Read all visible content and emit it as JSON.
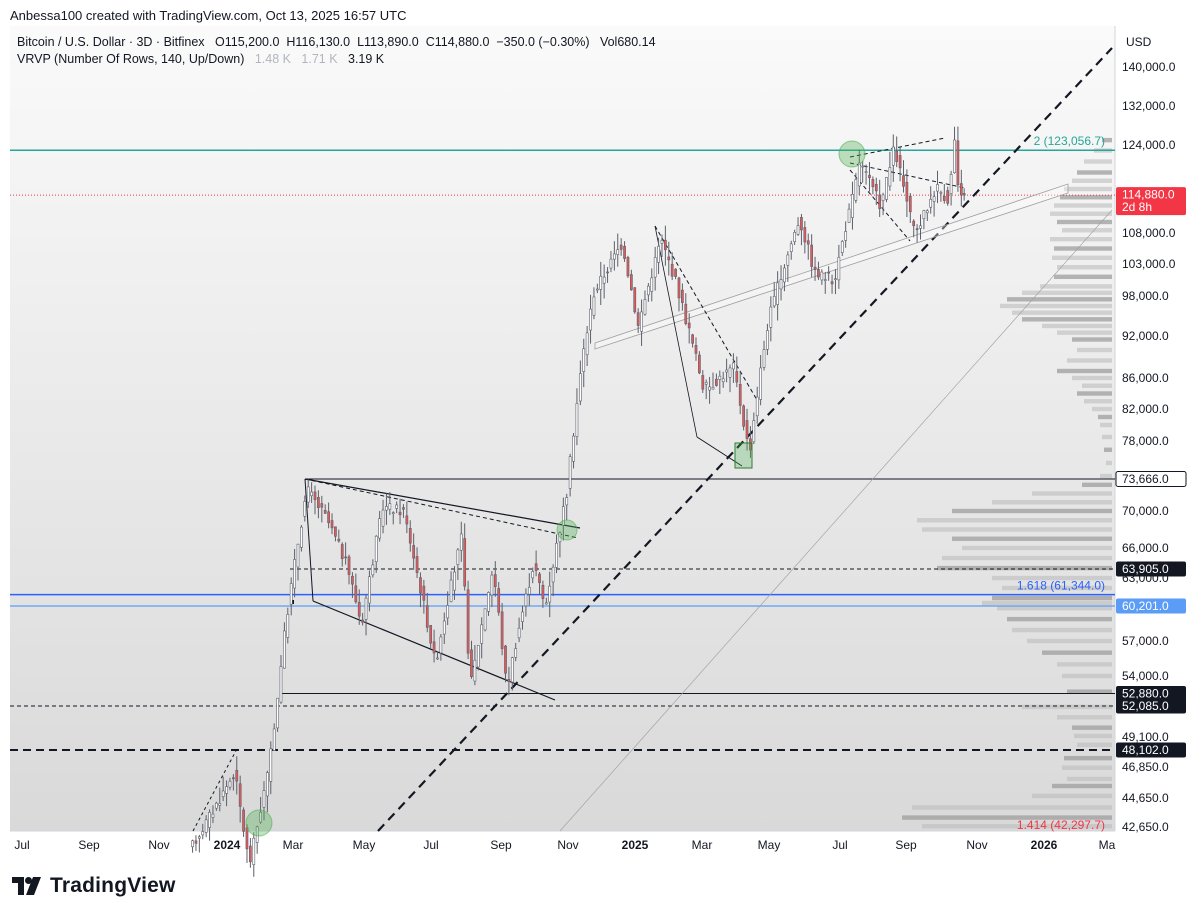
{
  "header": {
    "credit": "Anbessa100 created with TradingView.com, Oct 13, 2025 16:57 UTC"
  },
  "legend": {
    "symbol": "Bitcoin / U.S. Dollar · 3D · Bitfinex",
    "open_label": "O",
    "open": "115,200.0",
    "high_label": "H",
    "high": "116,130.0",
    "low_label": "L",
    "low": "113,890.0",
    "close_label": "C",
    "close": "114,880.0",
    "change": "−350.0 (−0.30%)",
    "vol_label": "Vol",
    "vol": "680.14",
    "indicator": "VRVP (Number Of Rows, 140, Up/Down)",
    "ind_v1": "1.48 K",
    "ind_v2": "1.71 K",
    "ind_v3": "3.19 K"
  },
  "footer": {
    "brand": "TradingView"
  },
  "colors": {
    "up": "#ffffff",
    "down": "#e05a5a",
    "green_line": "#26a69a",
    "blue_line": "#2962ff",
    "light_blue_line": "#5b9cf6",
    "price_red": "#f23645",
    "dark_label": "#131722",
    "green_marker": "#4caf50"
  },
  "chart_data": {
    "type": "candlestick",
    "currency": "USD",
    "x_ticks": [
      "Jul",
      "Sep",
      "Nov",
      "2024",
      "Mar",
      "May",
      "Jul",
      "Sep",
      "Nov",
      "2025",
      "Mar",
      "May",
      "Jul",
      "Sep",
      "Nov",
      "2026",
      "Ma"
    ],
    "y_ticks": [
      "140,000.0",
      "132,000.0",
      "124,000.0",
      "108,000.0",
      "103,000.0",
      "98,000.0",
      "92,000.0",
      "86,000.0",
      "82,000.0",
      "78,000.0",
      "70,000.0",
      "66,000.0",
      "63,000.0",
      "57,000.0",
      "54,000.0",
      "49,100.0",
      "46,850.0",
      "44,650.0",
      "42,650.0"
    ],
    "price_labels": [
      {
        "text": "114,880.0",
        "sub": "2d 8h",
        "value": 114880,
        "style": "red"
      },
      {
        "text": "73,666.0",
        "value": 73666,
        "style": "outline"
      },
      {
        "text": "63,905.0",
        "value": 63905,
        "style": "dark"
      },
      {
        "text": "60,201.0",
        "value": 60201,
        "style": "blue"
      },
      {
        "text": "52,880.0",
        "value": 52880,
        "style": "dark"
      },
      {
        "text": "52,085.0",
        "value": 52085,
        "style": "dark"
      },
      {
        "text": "48,102.0",
        "value": 48102,
        "style": "dark"
      }
    ],
    "fib_labels": [
      {
        "text": "2 (123,056.7)",
        "value": 123056.7,
        "color": "#26a69a"
      },
      {
        "text": "1.618 (61,344.0)",
        "value": 61344,
        "color": "#2962ff"
      },
      {
        "text": "1.414 (42,297.7)",
        "value": 42297.7,
        "color": "#f23645"
      }
    ],
    "levels": [
      {
        "value": 123056.7,
        "style": "green"
      },
      {
        "value": 114880,
        "style": "red-dotted"
      },
      {
        "value": 73666,
        "style": "black-thin"
      },
      {
        "value": 63905,
        "style": "dashed-thin"
      },
      {
        "value": 61344,
        "style": "blue"
      },
      {
        "value": 60201,
        "style": "light-blue"
      },
      {
        "value": 52880,
        "style": "black-thin"
      },
      {
        "value": 52085,
        "style": "dashed-thin"
      },
      {
        "value": 48102,
        "style": "dashed-thick"
      }
    ],
    "candle_anchors": [
      [
        "2023-12-01",
        41000
      ],
      [
        "2023-12-20",
        43500
      ],
      [
        "2024-01-10",
        46500
      ],
      [
        "2024-01-23",
        40000
      ],
      [
        "2024-02-10",
        47000
      ],
      [
        "2024-02-28",
        61500
      ],
      [
        "2024-03-14",
        72500
      ],
      [
        "2024-04-01",
        69000
      ],
      [
        "2024-04-19",
        64000
      ],
      [
        "2024-05-01",
        58500
      ],
      [
        "2024-05-20",
        70500
      ],
      [
        "2024-06-07",
        70000
      ],
      [
        "2024-07-05",
        55000
      ],
      [
        "2024-07-28",
        67000
      ],
      [
        "2024-08-05",
        53000
      ],
      [
        "2024-08-25",
        64000
      ],
      [
        "2024-09-06",
        53000
      ],
      [
        "2024-09-30",
        64500
      ],
      [
        "2024-10-10",
        60000
      ],
      [
        "2024-10-29",
        72000
      ],
      [
        "2024-11-13",
        90000
      ],
      [
        "2024-11-22",
        98500
      ],
      [
        "2024-12-17",
        106500
      ],
      [
        "2024-12-31",
        93500
      ],
      [
        "2025-01-20",
        107000
      ],
      [
        "2025-02-01",
        101000
      ],
      [
        "2025-02-27",
        84500
      ],
      [
        "2025-03-25",
        87500
      ],
      [
        "2025-04-08",
        76500
      ],
      [
        "2025-04-25",
        94500
      ],
      [
        "2025-05-22",
        110500
      ],
      [
        "2025-06-05",
        101500
      ],
      [
        "2025-06-22",
        100500
      ],
      [
        "2025-07-10",
        116000
      ],
      [
        "2025-07-14",
        121000
      ],
      [
        "2025-08-02",
        113000
      ],
      [
        "2025-08-14",
        123500
      ],
      [
        "2025-09-01",
        107500
      ],
      [
        "2025-09-20",
        116500
      ],
      [
        "2025-10-01",
        114000
      ],
      [
        "2025-10-06",
        125000
      ],
      [
        "2025-10-10",
        113000
      ],
      [
        "2025-10-13",
        114880
      ]
    ],
    "last": {
      "open": 115200,
      "high": 116130,
      "low": 113890,
      "close": 114880
    }
  }
}
